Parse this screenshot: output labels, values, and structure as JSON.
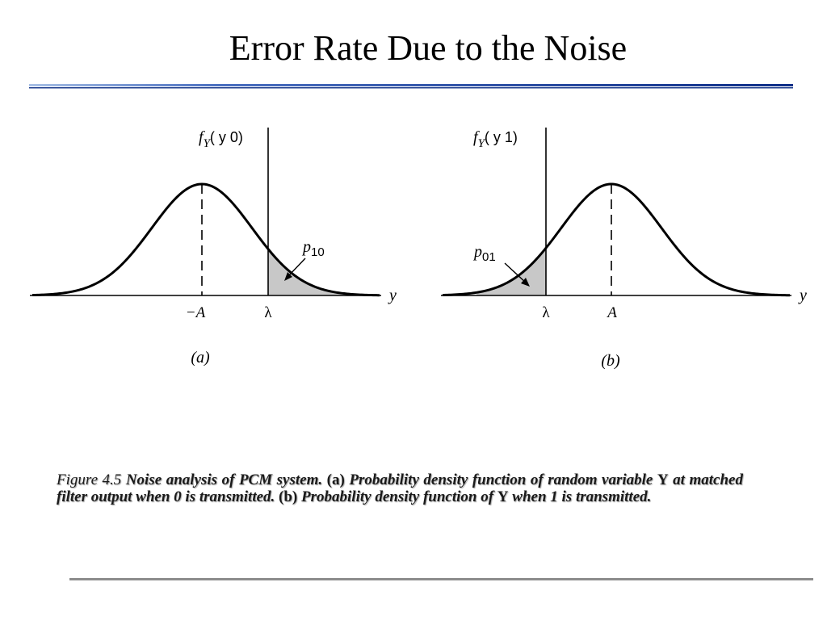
{
  "slide": {
    "title": "Error Rate Due to the Noise",
    "rule_color": "#1f3f8f"
  },
  "figure": {
    "panel_a": {
      "ylabel_f": "f",
      "ylabel_sub": "Y",
      "ylabel_args": "( y  0)",
      "xlabel": "y",
      "tick_mean": "−A",
      "tick_threshold": "λ",
      "region_label": "p",
      "region_sub": "10",
      "caption_tag": "(a)"
    },
    "panel_b": {
      "ylabel_f": "f",
      "ylabel_sub": "Y",
      "ylabel_args": "( y  1)",
      "xlabel": "y",
      "tick_threshold": "λ",
      "tick_mean": "A",
      "region_label": "p",
      "region_sub": "01",
      "caption_tag": "(b)"
    },
    "shade_color": "#c8c8c8"
  },
  "caption": {
    "figure_ref": "Figure 4.5",
    "part1": " Noise analysis of PCM system. ",
    "paren_a": "(a)",
    "part2": " Probability density function of random variable ",
    "var1": "Y",
    "part3": " at matched filter output when 0 is transmitted. ",
    "paren_b": "(b)",
    "part4": " Probability density function of ",
    "var2": "Y",
    "part5": " when 1 is transmitted."
  }
}
